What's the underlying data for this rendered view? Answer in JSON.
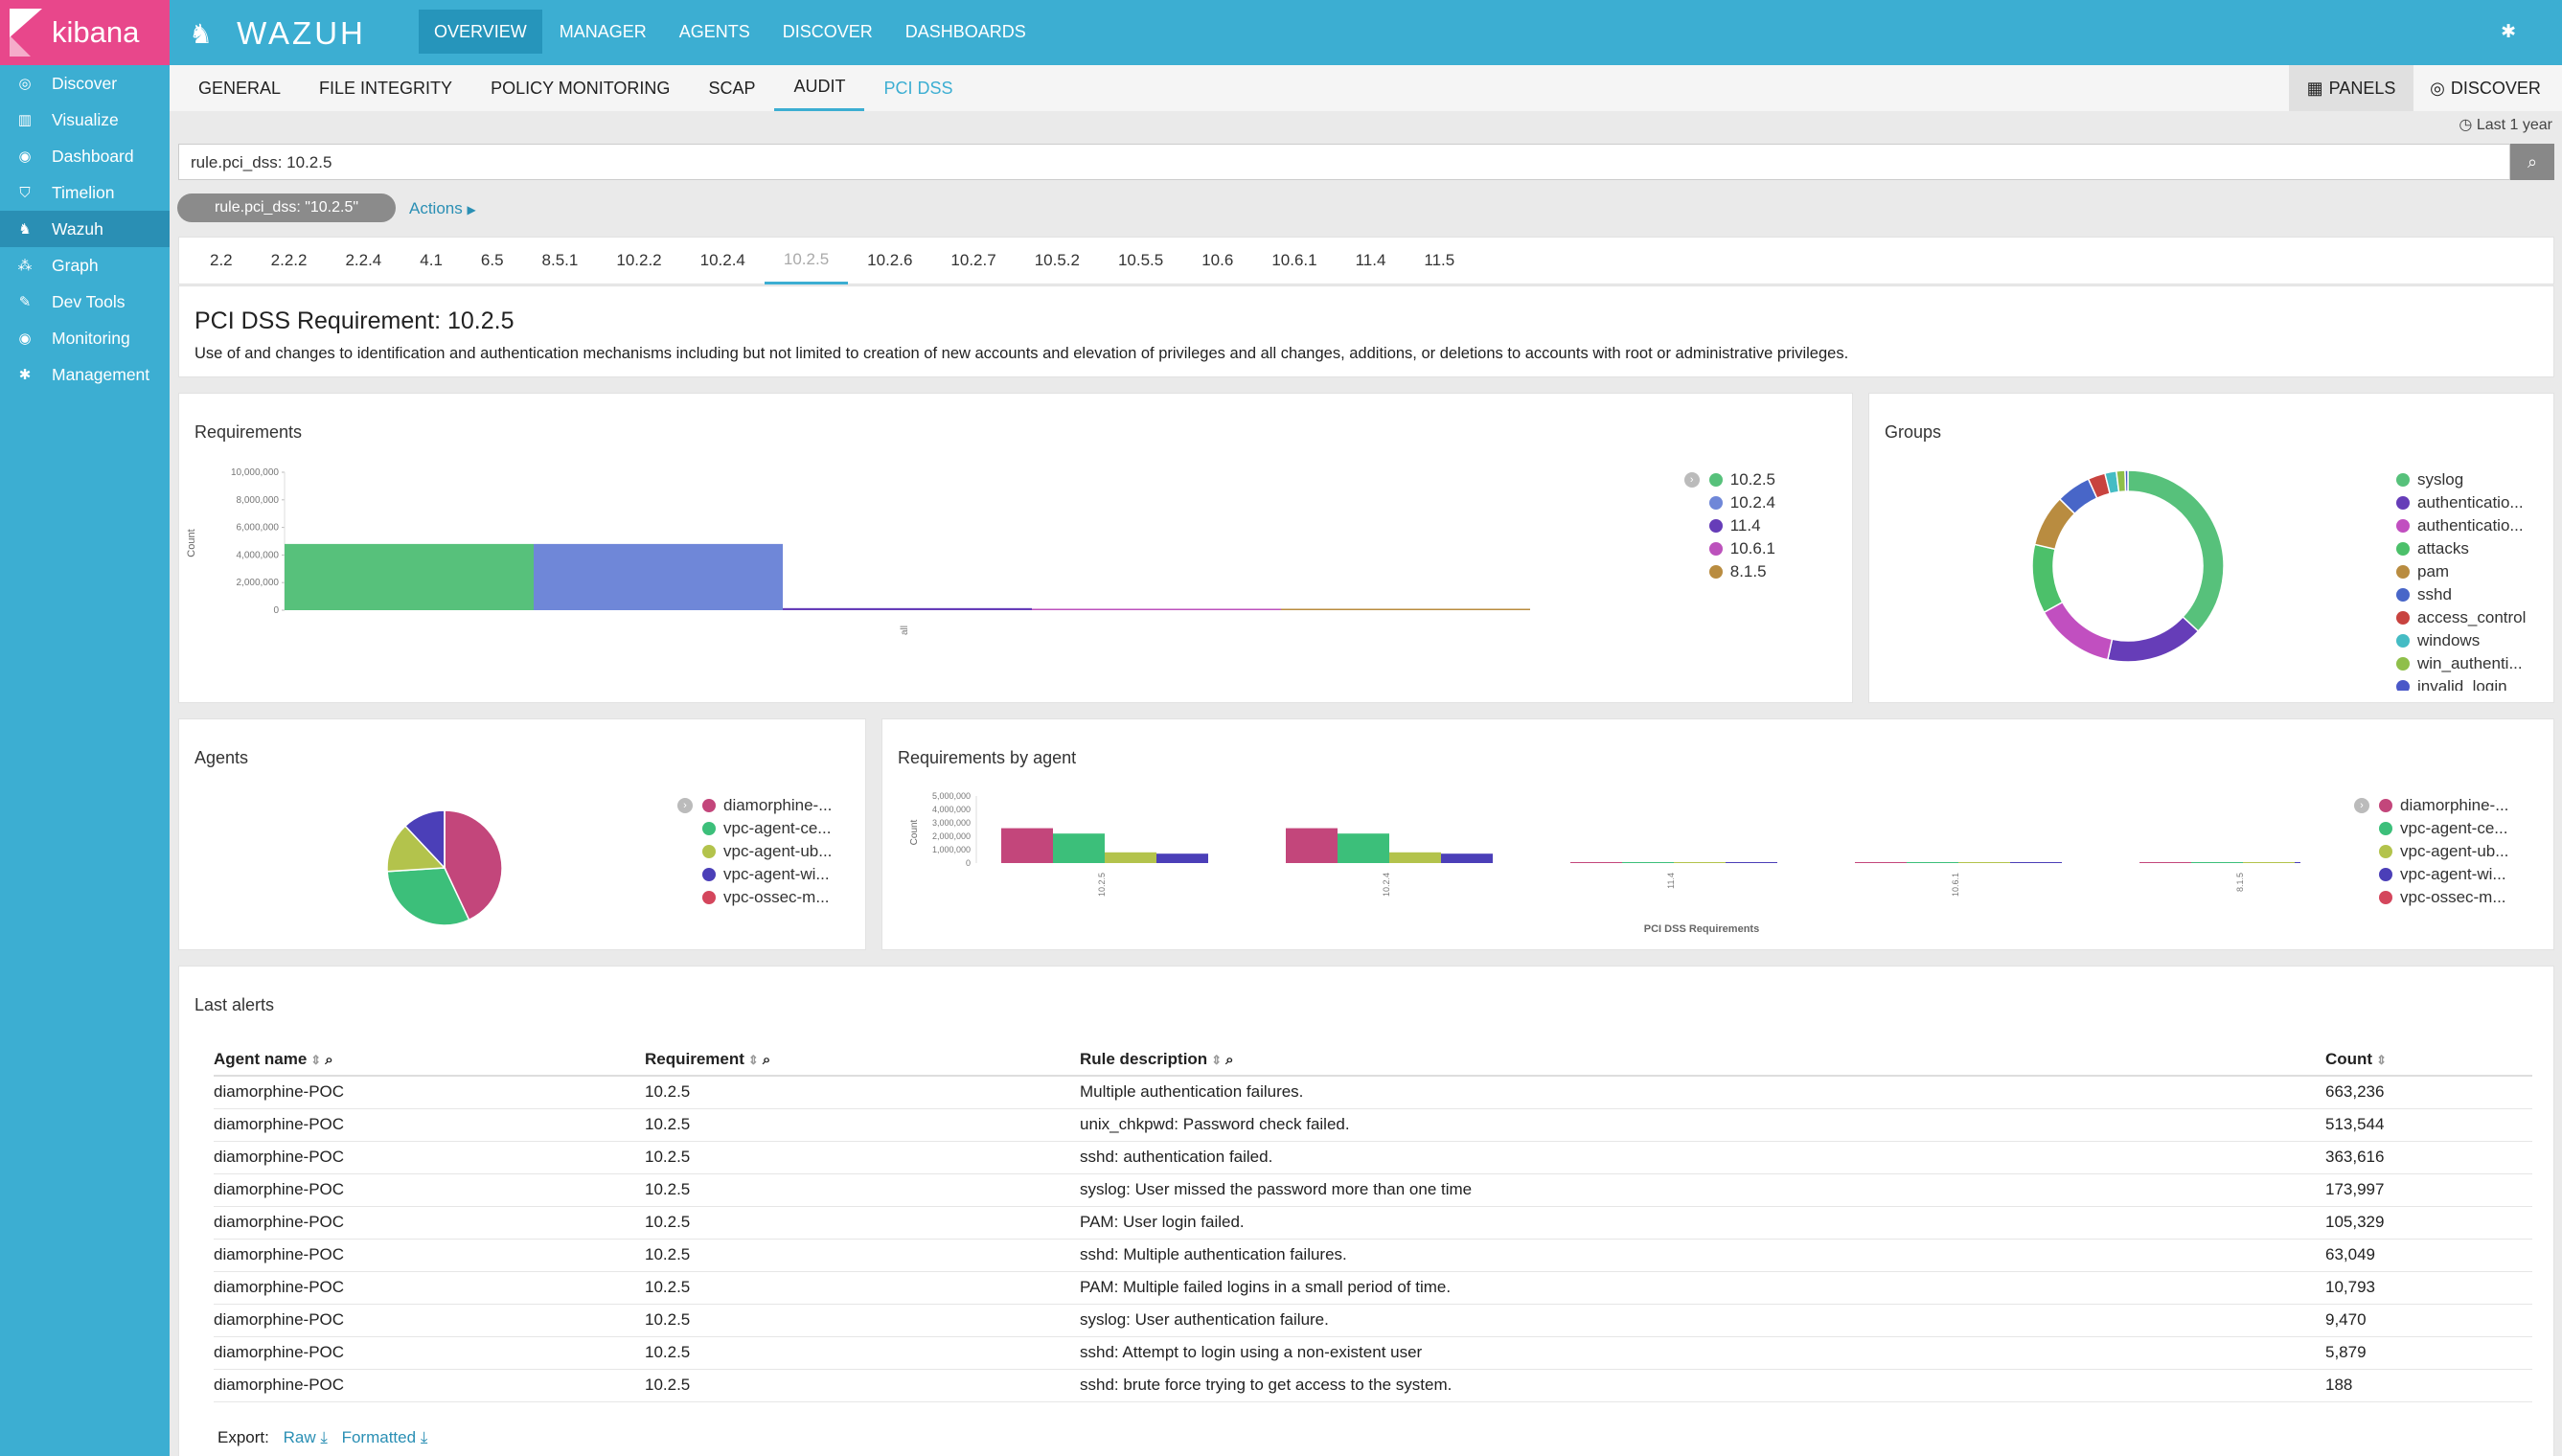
{
  "sidebar": {
    "logo": "kibana",
    "items": [
      {
        "label": "Discover",
        "icon": "compass-icon"
      },
      {
        "label": "Visualize",
        "icon": "bar-chart-icon"
      },
      {
        "label": "Dashboard",
        "icon": "dashboard-icon"
      },
      {
        "label": "Timelion",
        "icon": "shield-icon"
      },
      {
        "label": "Wazuh",
        "icon": "wazuh-fox-icon"
      },
      {
        "label": "Graph",
        "icon": "graph-icon"
      },
      {
        "label": "Dev Tools",
        "icon": "wrench-icon"
      },
      {
        "label": "Monitoring",
        "icon": "eye-icon"
      },
      {
        "label": "Management",
        "icon": "gear-icon"
      }
    ],
    "active_index": 4
  },
  "topbar": {
    "brand": "WAZUH",
    "tabs": [
      "OVERVIEW",
      "MANAGER",
      "AGENTS",
      "DISCOVER",
      "DASHBOARDS"
    ],
    "active_tab": "OVERVIEW"
  },
  "subbar": {
    "tabs": [
      "GENERAL",
      "FILE INTEGRITY",
      "POLICY MONITORING",
      "SCAP",
      "AUDIT",
      "PCI DSS"
    ],
    "active_tab": "AUDIT",
    "panels_label": "PANELS",
    "discover_label": "DISCOVER"
  },
  "time_range": "Last 1 year",
  "search": {
    "value": "rule.pci_dss: 10.2.5"
  },
  "filter": {
    "pill": "rule.pci_dss: \"10.2.5\"",
    "actions_label": "Actions"
  },
  "requirement_tabs": [
    "2.2",
    "2.2.2",
    "2.2.4",
    "4.1",
    "6.5",
    "8.5.1",
    "10.2.2",
    "10.2.4",
    "10.2.5",
    "10.2.6",
    "10.2.7",
    "10.5.2",
    "10.5.5",
    "10.6",
    "10.6.1",
    "11.4",
    "11.5"
  ],
  "active_requirement": "10.2.5",
  "requirement_info": {
    "title": "PCI DSS Requirement: 10.2.5",
    "description": "Use of and changes to identification and authentication mechanisms including but not limited to creation of new accounts and elevation of privileges and all changes, additions, or deletions to accounts with root or administrative privileges."
  },
  "panels": {
    "requirements": "Requirements",
    "groups": "Groups",
    "agents": "Agents",
    "requirements_by_agent": "Requirements by agent",
    "last_alerts": "Last alerts"
  },
  "colors": {
    "green": "#57c17b",
    "blue": "#6f87d8",
    "indigo": "#663db8",
    "pink": "#bc52bc",
    "gold": "#b98c40",
    "crimson": "#c3467b",
    "olive": "#b3c34c",
    "navy": "#4b3fb8",
    "red": "#d4465c",
    "accent": "#3caed2"
  },
  "chart_data": [
    {
      "type": "bar",
      "name": "Requirements",
      "categories": [
        "10.2.5",
        "10.2.4",
        "11.4",
        "10.6.1",
        "8.1.5"
      ],
      "values": [
        4800000,
        4800000,
        150000,
        60000,
        5000
      ],
      "ylabel": "Count",
      "yticks": [
        "0",
        "2,000,000",
        "4,000,000",
        "6,000,000",
        "8,000,000",
        "10,000,000"
      ],
      "ylim": [
        0,
        10000000
      ],
      "xtick": "all",
      "legend": [
        "10.2.5",
        "10.2.4",
        "11.4",
        "10.6.1",
        "8.1.5"
      ]
    },
    {
      "type": "pie",
      "name": "Groups",
      "labels": [
        "syslog",
        "authenticatio...",
        "authenticatio...",
        "attacks",
        "pam",
        "sshd",
        "access_control",
        "windows",
        "win_authenti...",
        "invalid_login"
      ],
      "values": [
        38,
        17,
        14,
        12,
        9,
        6,
        3,
        2,
        1.5,
        0.5
      ]
    },
    {
      "type": "pie",
      "name": "Agents",
      "labels": [
        "diamorphine-...",
        "vpc-agent-ce...",
        "vpc-agent-ub...",
        "vpc-agent-wi...",
        "vpc-ossec-m..."
      ],
      "values": [
        43,
        31,
        14,
        12,
        0.01
      ]
    },
    {
      "type": "bar",
      "name": "Requirements by agent",
      "categories": [
        "10.2.5",
        "10.2.4",
        "11.4",
        "10.6.1",
        "8.1.5"
      ],
      "series": [
        {
          "name": "diamorphine-...",
          "values": [
            2600000,
            2600000,
            40000,
            10000,
            0
          ]
        },
        {
          "name": "vpc-agent-ce...",
          "values": [
            2200000,
            2200000,
            30000,
            10000,
            0
          ]
        },
        {
          "name": "vpc-agent-ub...",
          "values": [
            800000,
            800000,
            20000,
            5000,
            0
          ]
        },
        {
          "name": "vpc-agent-wi...",
          "values": [
            700000,
            700000,
            15000,
            5000,
            0
          ]
        },
        {
          "name": "vpc-ossec-m...",
          "values": [
            0,
            0,
            0,
            0,
            0
          ]
        }
      ],
      "ylabel": "Count",
      "xlabel": "PCI DSS Requirements",
      "yticks": [
        "0",
        "1,000,000",
        "2,000,000",
        "3,000,000",
        "4,000,000",
        "5,000,000"
      ],
      "ylim": [
        0,
        5000000
      ]
    }
  ],
  "last_alerts": {
    "columns": [
      "Agent name",
      "Requirement",
      "Rule description",
      "Count"
    ],
    "rows": [
      [
        "diamorphine-POC",
        "10.2.5",
        "Multiple authentication failures.",
        "663,236"
      ],
      [
        "diamorphine-POC",
        "10.2.5",
        "unix_chkpwd: Password check failed.",
        "513,544"
      ],
      [
        "diamorphine-POC",
        "10.2.5",
        "sshd: authentication failed.",
        "363,616"
      ],
      [
        "diamorphine-POC",
        "10.2.5",
        "syslog: User missed the password more than one time",
        "173,997"
      ],
      [
        "diamorphine-POC",
        "10.2.5",
        "PAM: User login failed.",
        "105,329"
      ],
      [
        "diamorphine-POC",
        "10.2.5",
        "sshd: Multiple authentication failures.",
        "63,049"
      ],
      [
        "diamorphine-POC",
        "10.2.5",
        "PAM: Multiple failed logins in a small period of time.",
        "10,793"
      ],
      [
        "diamorphine-POC",
        "10.2.5",
        "syslog: User authentication failure.",
        "9,470"
      ],
      [
        "diamorphine-POC",
        "10.2.5",
        "sshd: Attempt to login using a non-existent user",
        "5,879"
      ],
      [
        "diamorphine-POC",
        "10.2.5",
        "sshd: brute force trying to get access to the system.",
        "188"
      ]
    ],
    "export_label": "Export:",
    "raw_label": "Raw",
    "formatted_label": "Formatted"
  }
}
